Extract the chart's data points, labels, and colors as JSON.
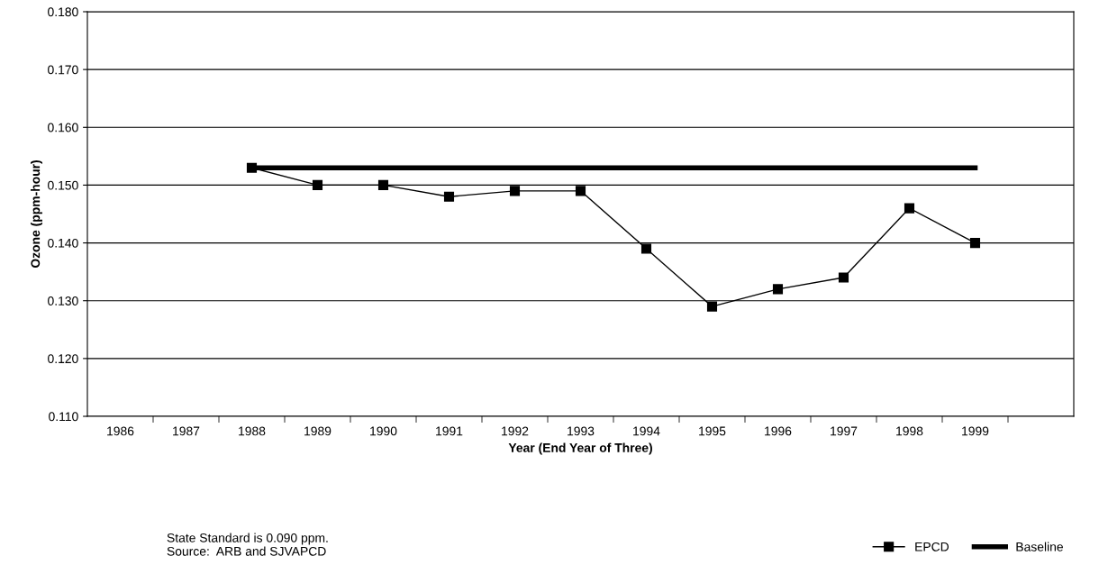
{
  "chart_data": {
    "type": "line",
    "xlabel": "Year (End Year of Three)",
    "ylabel": "Ozone (ppm-hour)",
    "categories": [
      "1986",
      "1987",
      "1988",
      "1989",
      "1990",
      "1991",
      "1992",
      "1993",
      "1994",
      "1995",
      "1996",
      "1997",
      "1998",
      "1999",
      null
    ],
    "series": [
      {
        "name": "EPCD",
        "color": "#000000",
        "marker": "square",
        "values": [
          null,
          null,
          0.153,
          0.15,
          0.15,
          0.148,
          0.149,
          0.149,
          0.139,
          0.129,
          0.132,
          0.134,
          0.146,
          0.14,
          null
        ]
      },
      {
        "name": "Baseline",
        "color": "#000000",
        "marker": "none",
        "values": [
          null,
          null,
          0.153,
          0.153,
          0.153,
          0.153,
          0.153,
          0.153,
          0.153,
          0.153,
          0.153,
          0.153,
          0.153,
          0.153,
          null
        ]
      }
    ],
    "ylim": [
      0.11,
      0.18
    ],
    "yticks": [
      {
        "value": 0.11,
        "label": "0.110"
      },
      {
        "value": 0.12,
        "label": "0.120"
      },
      {
        "value": 0.13,
        "label": "0.130"
      },
      {
        "value": 0.14,
        "label": "0.140"
      },
      {
        "value": 0.15,
        "label": "0.150"
      },
      {
        "value": 0.16,
        "label": "0.160"
      },
      {
        "value": 0.17,
        "label": "0.170"
      },
      {
        "value": 0.18,
        "label": "0.180"
      }
    ],
    "grid": "y",
    "legend": "bottom right",
    "annotations": [
      "State Standard is 0.090 ppm.\nSource:  ARB and SJVAPCD"
    ]
  }
}
